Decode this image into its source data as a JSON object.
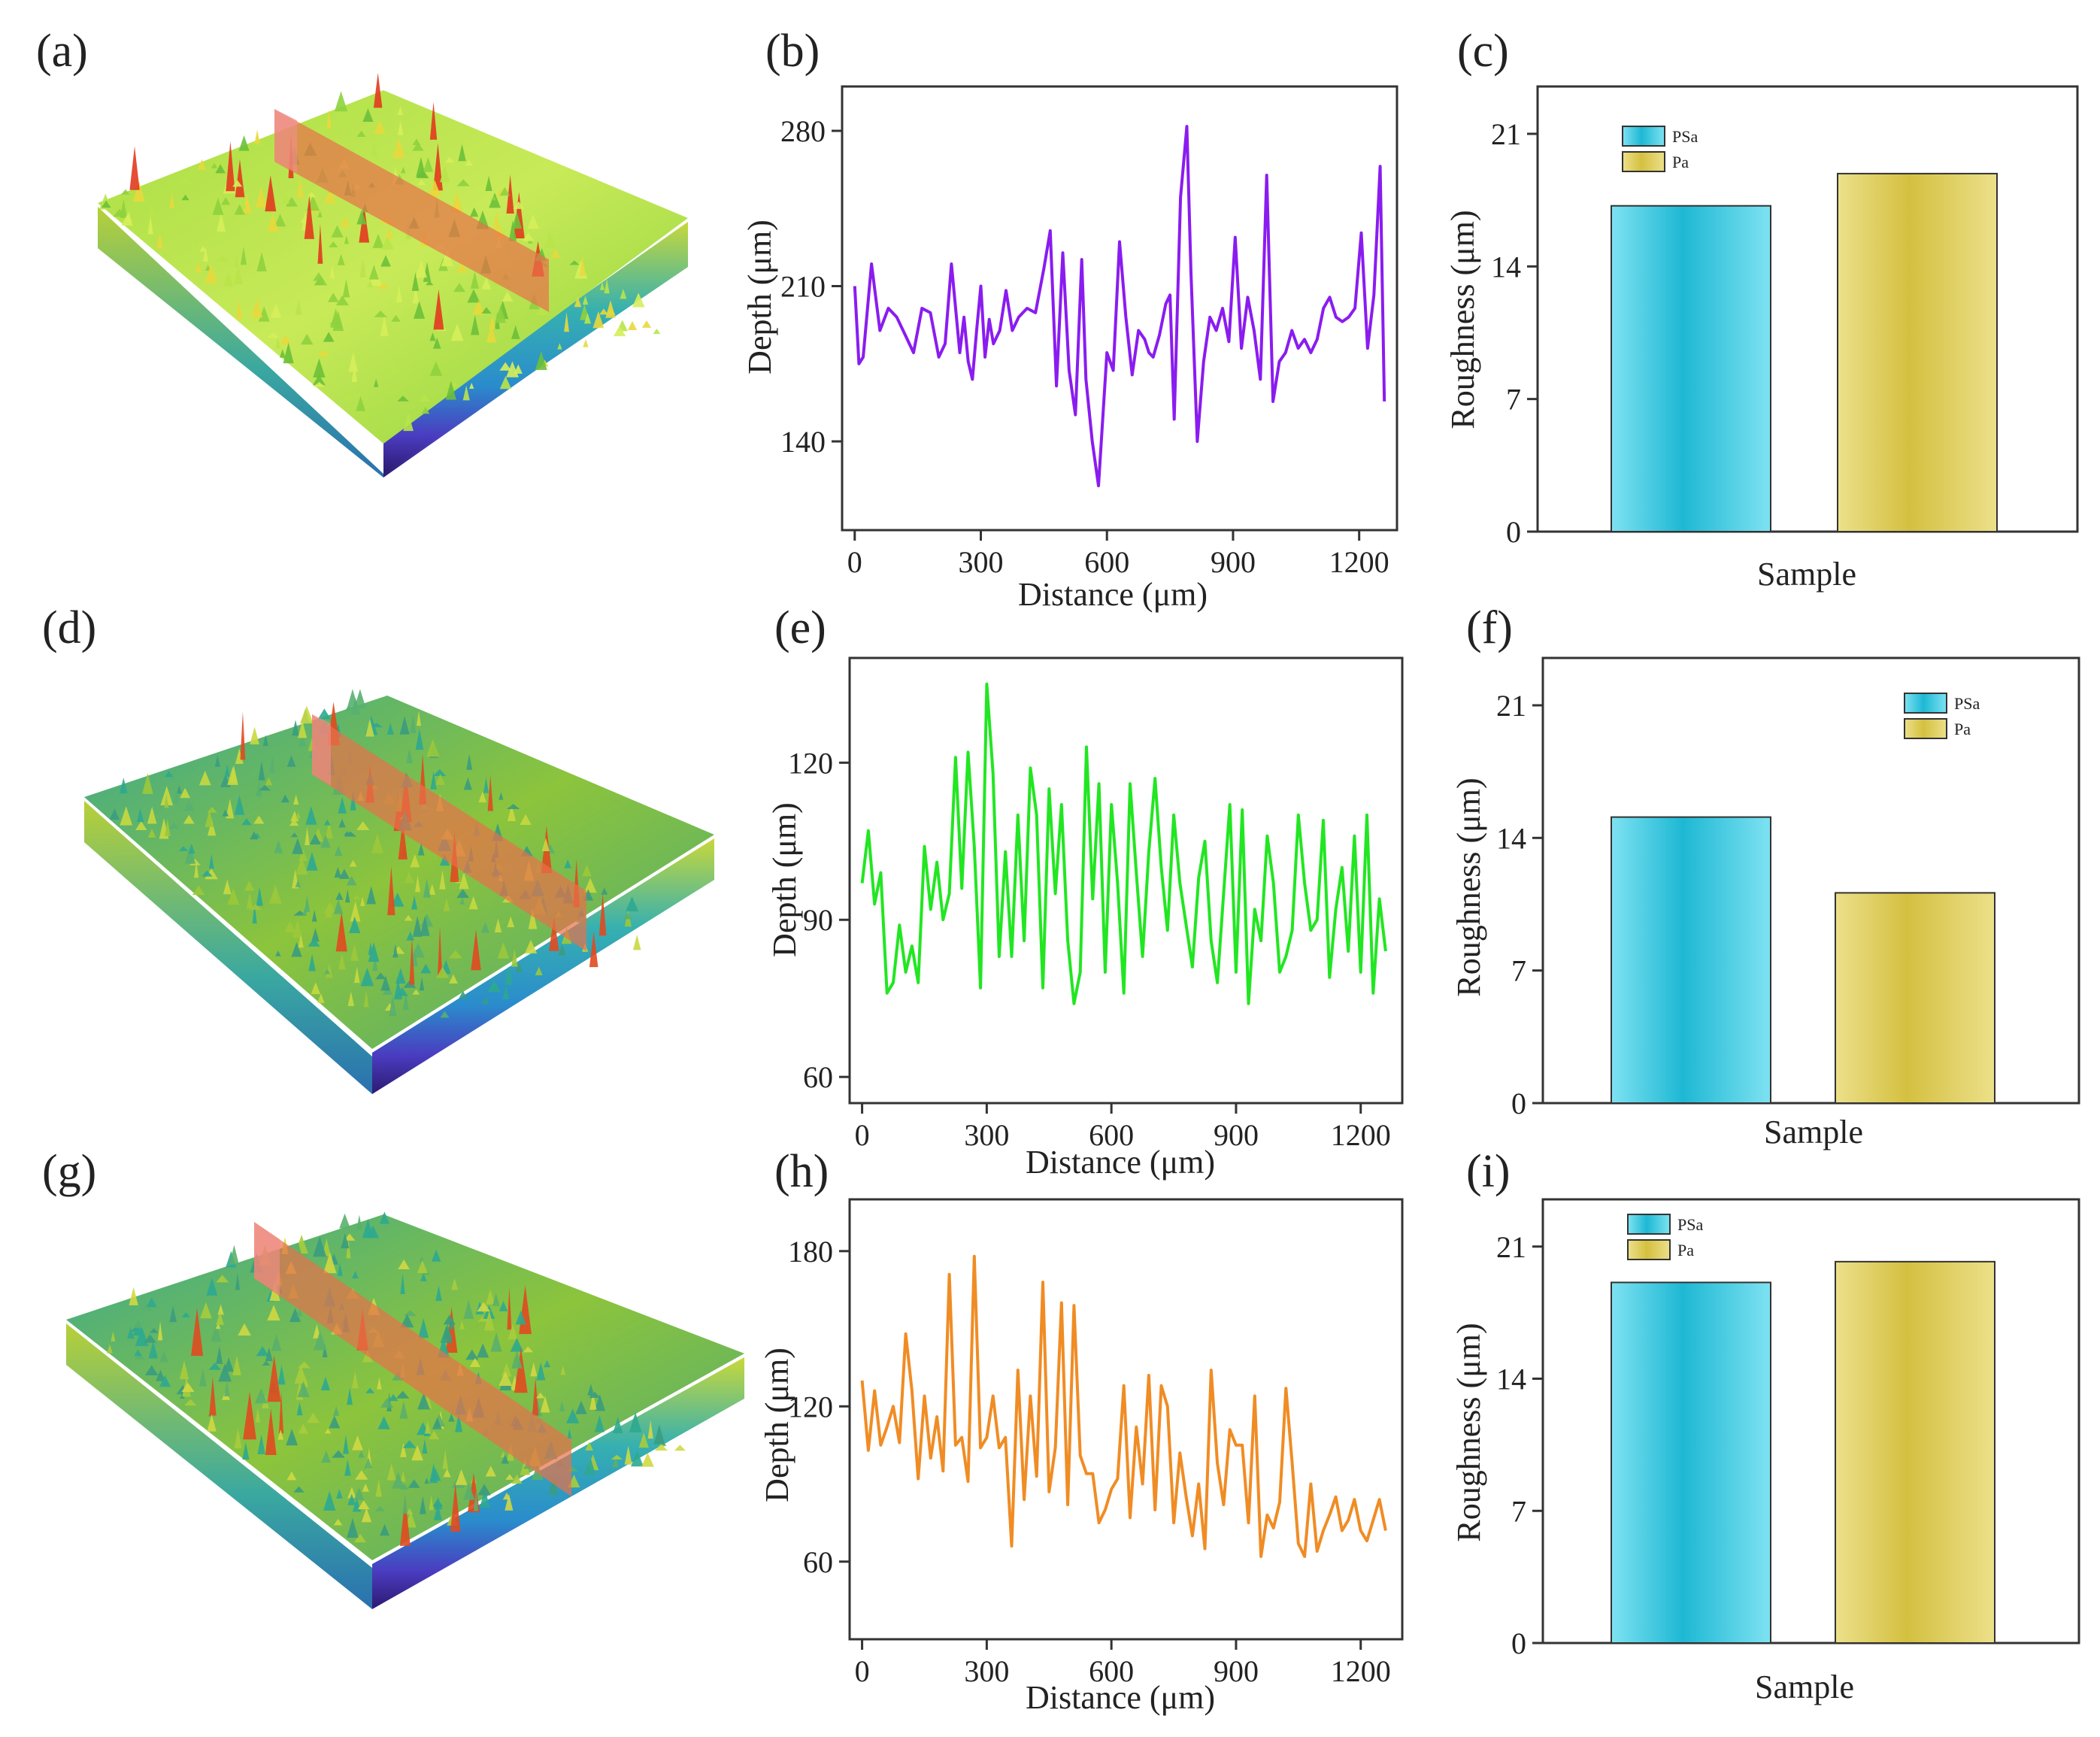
{
  "figure": {
    "panel_letters": [
      "(a)",
      "(b)",
      "(c)",
      "(d)",
      "(e)",
      "(f)",
      "(g)",
      "(h)",
      "(i)"
    ]
  },
  "colors": {
    "line_b": "#8a1cf0",
    "line_e": "#22e622",
    "line_h": "#f08c24",
    "bar_psa": "#22bcd8",
    "bar_pa": "#d8c64e",
    "surface_low": "#2e2aa0",
    "surface_mid": "#28b0b8",
    "surface_high": "#e6e236",
    "surface_peak": "#e23a1e",
    "cut_plane": "#e8704a"
  },
  "surfaces": [
    {
      "panel": "(a)",
      "tone": "yellow-green",
      "has_cut_plane": true
    },
    {
      "panel": "(d)",
      "tone": "teal-green",
      "has_cut_plane": true
    },
    {
      "panel": "(g)",
      "tone": "teal-green",
      "has_cut_plane": true
    }
  ],
  "chart_data": [
    {
      "panel": "(b)",
      "type": "line",
      "xlabel": "Distance (μm)",
      "ylabel": "Depth (μm)",
      "xlim": [
        -30,
        1290
      ],
      "ylim": [
        100,
        300
      ],
      "xticks": [
        0,
        300,
        600,
        900,
        1200
      ],
      "yticks": [
        140,
        210,
        280
      ],
      "x": [
        0,
        10,
        20,
        40,
        60,
        80,
        100,
        120,
        140,
        160,
        180,
        200,
        215,
        230,
        250,
        260,
        270,
        280,
        290,
        300,
        310,
        320,
        330,
        345,
        360,
        375,
        390,
        410,
        430,
        450,
        465,
        480,
        495,
        510,
        525,
        540,
        550,
        565,
        580,
        600,
        615,
        630,
        645,
        660,
        675,
        690,
        700,
        710,
        725,
        740,
        750,
        760,
        775,
        790,
        800,
        815,
        830,
        845,
        860,
        875,
        890,
        905,
        920,
        935,
        950,
        965,
        980,
        995,
        1010,
        1025,
        1040,
        1055,
        1070,
        1085,
        1100,
        1115,
        1130,
        1145,
        1160,
        1175,
        1190,
        1205,
        1220,
        1235,
        1250,
        1260
      ],
      "series": [
        {
          "values": [
            210,
            175,
            178,
            220,
            190,
            200,
            196,
            188,
            180,
            200,
            198,
            178,
            184,
            220,
            180,
            196,
            176,
            168,
            190,
            210,
            178,
            195,
            184,
            190,
            208,
            190,
            196,
            200,
            198,
            218,
            235,
            165,
            225,
            172,
            152,
            222,
            168,
            140,
            120,
            180,
            172,
            230,
            196,
            170,
            190,
            186,
            180,
            178,
            188,
            202,
            206,
            150,
            250,
            282,
            216,
            140,
            176,
            196,
            190,
            200,
            185,
            232,
            182,
            205,
            190,
            168,
            260,
            158,
            176,
            180,
            190,
            182,
            186,
            180,
            186,
            200,
            205,
            196,
            194,
            196,
            200,
            234,
            182,
            206,
            264,
            158
          ]
        }
      ]
    },
    {
      "panel": "(c)",
      "type": "bar",
      "xlabel": "Sample",
      "ylabel": "Roughness (μm)",
      "ylim": [
        0,
        23.5
      ],
      "yticks": [
        0,
        7,
        14,
        21
      ],
      "legend_position": "top-left",
      "series": [
        {
          "name": "PSa",
          "values": [
            17.2
          ]
        },
        {
          "name": "Pa",
          "values": [
            18.9
          ]
        }
      ]
    },
    {
      "panel": "(e)",
      "type": "line",
      "xlabel": "Distance (μm)",
      "ylabel": "Depth (μm)",
      "xlim": [
        -30,
        1300
      ],
      "ylim": [
        55,
        140
      ],
      "xticks": [
        0,
        300,
        600,
        900,
        1200
      ],
      "yticks": [
        60,
        90,
        120
      ],
      "x": [
        0,
        15,
        30,
        45,
        60,
        75,
        90,
        105,
        120,
        135,
        150,
        165,
        180,
        195,
        210,
        225,
        240,
        255,
        270,
        285,
        300,
        315,
        330,
        345,
        360,
        375,
        390,
        405,
        420,
        435,
        450,
        465,
        480,
        495,
        510,
        525,
        540,
        555,
        570,
        585,
        600,
        615,
        630,
        645,
        660,
        675,
        690,
        705,
        720,
        735,
        750,
        765,
        780,
        795,
        810,
        825,
        840,
        855,
        870,
        885,
        900,
        915,
        930,
        945,
        960,
        975,
        990,
        1005,
        1020,
        1035,
        1050,
        1065,
        1080,
        1095,
        1110,
        1125,
        1140,
        1155,
        1170,
        1185,
        1200,
        1215,
        1230,
        1245,
        1260
      ],
      "series": [
        {
          "values": [
            97,
            107,
            93,
            99,
            76,
            78,
            89,
            80,
            85,
            78,
            104,
            92,
            101,
            90,
            95,
            121,
            96,
            122,
            104,
            77,
            135,
            118,
            83,
            103,
            83,
            110,
            86,
            119,
            110,
            77,
            115,
            95,
            112,
            86,
            74,
            80,
            123,
            94,
            116,
            80,
            112,
            97,
            76,
            116,
            99,
            83,
            103,
            117,
            100,
            88,
            110,
            97,
            89,
            81,
            98,
            105,
            86,
            78,
            95,
            112,
            80,
            111,
            74,
            92,
            86,
            106,
            97,
            80,
            83,
            88,
            110,
            97,
            88,
            90,
            109,
            79,
            92,
            100,
            84,
            106,
            80,
            110,
            76,
            94,
            84
          ]
        }
      ]
    },
    {
      "panel": "(f)",
      "type": "bar",
      "xlabel": "Sample",
      "ylabel": "Roughness (μm)",
      "ylim": [
        0,
        23.5
      ],
      "yticks": [
        0,
        7,
        14,
        21
      ],
      "legend_position": "top-right",
      "series": [
        {
          "name": "PSa",
          "values": [
            15.1
          ]
        },
        {
          "name": "Pa",
          "values": [
            11.1
          ]
        }
      ]
    },
    {
      "panel": "(h)",
      "type": "line",
      "xlabel": "Distance (μm)",
      "ylabel": "Depth (μm)",
      "xlim": [
        -30,
        1300
      ],
      "ylim": [
        30,
        200
      ],
      "xticks": [
        0,
        300,
        600,
        900,
        1200
      ],
      "yticks": [
        60,
        120,
        180
      ],
      "x": [
        0,
        15,
        30,
        45,
        60,
        75,
        90,
        105,
        120,
        135,
        150,
        165,
        180,
        195,
        210,
        225,
        240,
        255,
        270,
        285,
        300,
        315,
        330,
        345,
        360,
        375,
        390,
        405,
        420,
        435,
        450,
        465,
        480,
        495,
        510,
        525,
        540,
        555,
        570,
        585,
        600,
        615,
        630,
        645,
        660,
        675,
        690,
        705,
        720,
        735,
        750,
        765,
        780,
        795,
        810,
        825,
        840,
        855,
        870,
        885,
        900,
        915,
        930,
        945,
        960,
        975,
        990,
        1005,
        1020,
        1035,
        1050,
        1065,
        1080,
        1095,
        1110,
        1125,
        1140,
        1155,
        1170,
        1185,
        1200,
        1215,
        1230,
        1245,
        1260
      ],
      "series": [
        {
          "values": [
            130,
            103,
            126,
            105,
            112,
            120,
            106,
            148,
            126,
            92,
            124,
            100,
            116,
            95,
            171,
            105,
            108,
            91,
            178,
            104,
            108,
            124,
            104,
            108,
            66,
            134,
            84,
            124,
            93,
            168,
            87,
            104,
            160,
            82,
            159,
            101,
            94,
            94,
            75,
            80,
            88,
            92,
            128,
            77,
            112,
            90,
            132,
            80,
            128,
            120,
            75,
            102,
            85,
            70,
            90,
            65,
            134,
            98,
            82,
            111,
            105,
            105,
            75,
            124,
            62,
            78,
            73,
            83,
            127,
            98,
            67,
            62,
            90,
            64,
            72,
            78,
            85,
            72,
            76,
            84,
            72,
            68,
            76,
            84,
            72
          ]
        }
      ]
    },
    {
      "panel": "(i)",
      "type": "bar",
      "xlabel": "Sample",
      "ylabel": "Roughness (μm)",
      "ylim": [
        0,
        23.5
      ],
      "yticks": [
        0,
        7,
        14,
        21
      ],
      "legend_position": "top-left",
      "series": [
        {
          "name": "PSa",
          "values": [
            19.1
          ]
        },
        {
          "name": "Pa",
          "values": [
            20.2
          ]
        }
      ]
    }
  ]
}
